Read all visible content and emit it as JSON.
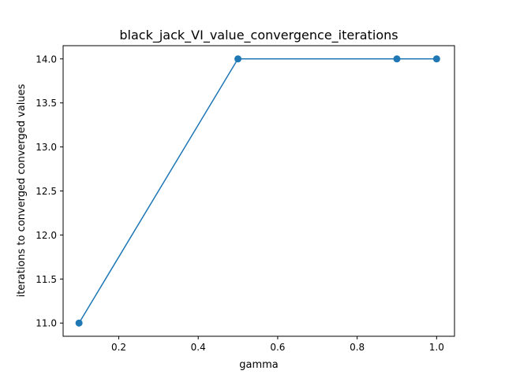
{
  "chart_data": {
    "type": "line",
    "title": "black_jack_VI_value_convergence_iterations",
    "xlabel": "gamma",
    "ylabel": "iterations to converged converged values",
    "xlim": [
      0.06,
      1.045
    ],
    "ylim": [
      10.85,
      14.15
    ],
    "xticks": [
      0.2,
      0.4,
      0.6,
      0.8,
      1.0
    ],
    "xtick_labels": [
      "0.2",
      "0.4",
      "0.6",
      "0.8",
      "1.0"
    ],
    "yticks": [
      11.0,
      11.5,
      12.0,
      12.5,
      13.0,
      13.5,
      14.0
    ],
    "ytick_labels": [
      "11.0",
      "11.5",
      "12.0",
      "12.5",
      "13.0",
      "13.5",
      "14.0"
    ],
    "grid": false,
    "series": [
      {
        "x": [
          0.1,
          0.5,
          0.9,
          1.0
        ],
        "y": [
          11,
          14,
          14,
          14
        ],
        "color": "#1f77b4",
        "marker": "circle"
      }
    ]
  }
}
